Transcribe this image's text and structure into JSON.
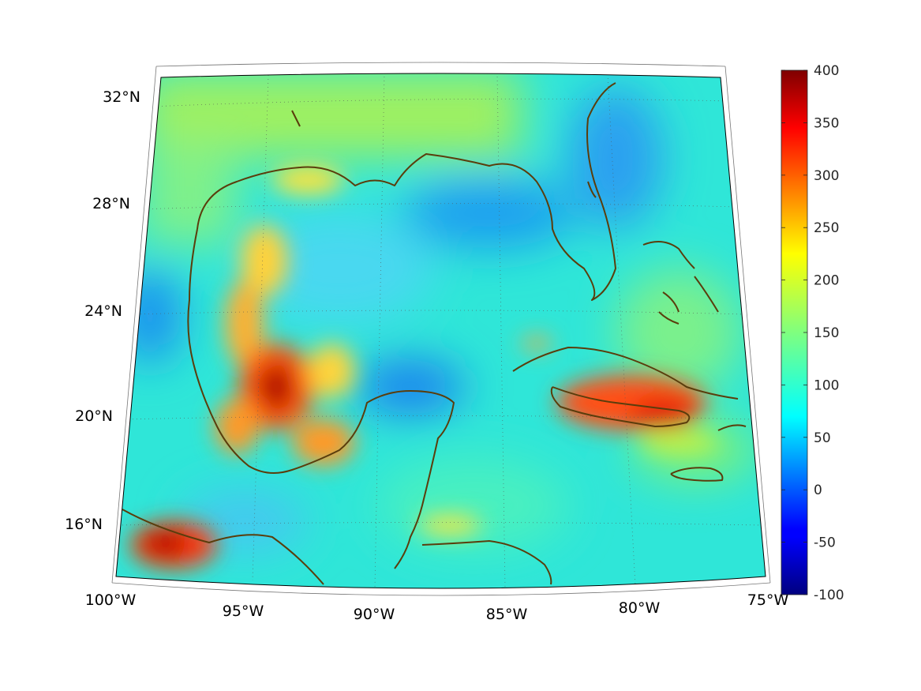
{
  "map": {
    "projection": "conic",
    "lon_range": [
      -100,
      -75
    ],
    "lat_range": [
      14,
      33
    ],
    "graticule": "dotted",
    "coastline_color": "#5a3d0c",
    "lat_labels": [
      "32°N",
      "28°N",
      "24°N",
      "20°N",
      "16°N"
    ],
    "lon_labels": [
      "100°W",
      "95°W",
      "90°W",
      "85°W",
      "80°W",
      "75°W"
    ],
    "colormap": "jet"
  },
  "colorbar": {
    "range": [
      -100,
      400
    ],
    "ticks": [
      "400",
      "350",
      "300",
      "250",
      "200",
      "150",
      "100",
      "50",
      "0",
      "-50",
      "-100"
    ]
  },
  "features": [
    {
      "region": "western gulf off Mexico",
      "value": 360
    },
    {
      "region": "southern Cuba",
      "value": 320
    },
    {
      "region": "Gulf of Tehuantepec coast",
      "value": 370
    },
    {
      "region": "Louisiana coast",
      "value": 220
    },
    {
      "region": "northeast Gulf",
      "value": 50
    },
    {
      "region": "Yucatan channel north",
      "value": 40
    }
  ]
}
